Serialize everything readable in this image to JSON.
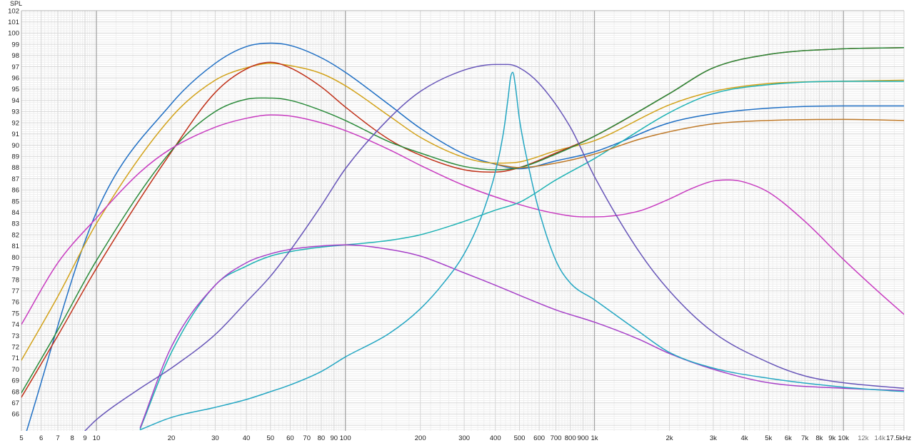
{
  "chart_data": {
    "type": "line",
    "title": "",
    "ylabel": "SPL",
    "xlabel": "",
    "x_scale": "log",
    "xlim": [
      5,
      17500
    ],
    "ylim": [
      64.5,
      102
    ],
    "grid": true,
    "legend": "none",
    "y_ticks": [
      "102",
      "101",
      "100",
      "99",
      "98",
      "97",
      "96",
      "95",
      "94",
      "93",
      "92",
      "91",
      "90",
      "89",
      "88",
      "87",
      "86",
      "85",
      "84",
      "83",
      "82",
      "81",
      "80",
      "79",
      "78",
      "77",
      "76",
      "75",
      "74",
      "73",
      "72",
      "71",
      "70",
      "69",
      "68",
      "67",
      "66"
    ],
    "x_ticks": [
      {
        "f": 5,
        "label": "5"
      },
      {
        "f": 6,
        "label": "6"
      },
      {
        "f": 7,
        "label": "7"
      },
      {
        "f": 8,
        "label": "8"
      },
      {
        "f": 9,
        "label": "9"
      },
      {
        "f": 10,
        "label": "10"
      },
      {
        "f": 20,
        "label": "20"
      },
      {
        "f": 30,
        "label": "30"
      },
      {
        "f": 40,
        "label": "40"
      },
      {
        "f": 50,
        "label": "50"
      },
      {
        "f": 60,
        "label": "60"
      },
      {
        "f": 70,
        "label": "70"
      },
      {
        "f": 80,
        "label": "80"
      },
      {
        "f": 90,
        "label": "90"
      },
      {
        "f": 100,
        "label": "100"
      },
      {
        "f": 200,
        "label": "200"
      },
      {
        "f": 300,
        "label": "300"
      },
      {
        "f": 400,
        "label": "400"
      },
      {
        "f": 500,
        "label": "500"
      },
      {
        "f": 600,
        "label": "600"
      },
      {
        "f": 700,
        "label": "700"
      },
      {
        "f": 800,
        "label": "800"
      },
      {
        "f": 900,
        "label": "900"
      },
      {
        "f": 1000,
        "label": "1k"
      },
      {
        "f": 2000,
        "label": "2k"
      },
      {
        "f": 3000,
        "label": "3k"
      },
      {
        "f": 4000,
        "label": "4k"
      },
      {
        "f": 5000,
        "label": "5k"
      },
      {
        "f": 6000,
        "label": "6k"
      },
      {
        "f": 7000,
        "label": "7k"
      },
      {
        "f": 8000,
        "label": "8k"
      },
      {
        "f": 9000,
        "label": "9k"
      },
      {
        "f": 10000,
        "label": "10k"
      },
      {
        "f": 12000,
        "label": "12k"
      },
      {
        "f": 14000,
        "label": "14k"
      },
      {
        "f": 17500,
        "label": "17.5kHz"
      }
    ],
    "series": [
      {
        "color": "#1f6fc4",
        "x": [
          5,
          10,
          20,
          30,
          40,
          50,
          60,
          80,
          100,
          150,
          200,
          300,
          400,
          500,
          700,
          1000,
          2000,
          3000,
          5000,
          10000,
          17500
        ],
        "y": [
          63,
          84,
          93.7,
          97.3,
          98.8,
          99.1,
          98.9,
          97.8,
          96.5,
          93.6,
          91.5,
          89.2,
          88.3,
          87.9,
          88.6,
          89.4,
          92.0,
          92.8,
          93.3,
          93.5,
          93.5
        ]
      },
      {
        "color": "#d2a21a",
        "x": [
          5,
          7,
          10,
          20,
          30,
          40,
          50,
          60,
          80,
          100,
          150,
          200,
          300,
          400,
          500,
          700,
          1000,
          2000,
          3000,
          5000,
          10000,
          17500
        ],
        "y": [
          70.8,
          76.5,
          83,
          92.5,
          95.8,
          96.9,
          97.3,
          97.1,
          96.4,
          95.3,
          92.6,
          90.7,
          88.9,
          88.4,
          88.5,
          89.5,
          90.4,
          93.6,
          94.8,
          95.5,
          95.7,
          95.8
        ]
      },
      {
        "color": "#c03018",
        "x": [
          5,
          7,
          10,
          20,
          30,
          40,
          50,
          60,
          80,
          100,
          150,
          200,
          300,
          400,
          500,
          700,
          1000,
          2000,
          3000,
          5000,
          10000,
          17500
        ],
        "y": [
          67.5,
          73,
          79,
          89.4,
          94.7,
          96.8,
          97.4,
          96.9,
          95.2,
          93.4,
          90.5,
          89.1,
          87.8,
          87.6,
          88.0,
          89.3,
          90.8,
          94.6,
          96.9,
          98.1,
          98.6,
          98.7
        ]
      },
      {
        "color": "#2a8a3a",
        "x": [
          5,
          7,
          10,
          20,
          30,
          40,
          50,
          60,
          80,
          100,
          150,
          200,
          300,
          400,
          500,
          700,
          1000,
          2000,
          3000,
          5000,
          10000,
          17500
        ],
        "y": [
          67.9,
          73.5,
          79.7,
          89.5,
          93.0,
          94.1,
          94.2,
          94.0,
          93.1,
          92.2,
          90.3,
          89.3,
          88.1,
          87.8,
          88.0,
          89.2,
          90.8,
          94.6,
          96.9,
          98.1,
          98.6,
          98.7
        ]
      },
      {
        "color": "#c83cc0",
        "x": [
          5,
          7,
          10,
          15,
          20,
          30,
          40,
          50,
          60,
          80,
          100,
          150,
          200,
          300,
          500,
          700,
          900,
          1000,
          1500,
          2000,
          2500,
          3000,
          3500,
          4000,
          5000,
          7000,
          10000,
          14000,
          17500
        ],
        "y": [
          74,
          79.5,
          83.5,
          87.6,
          89.7,
          91.6,
          92.4,
          92.7,
          92.6,
          92.0,
          91.3,
          89.6,
          88.2,
          86.4,
          84.7,
          83.9,
          83.6,
          83.6,
          84.1,
          85.2,
          86.2,
          86.8,
          86.9,
          86.7,
          85.8,
          83.2,
          79.8,
          76.8,
          74.9
        ]
      },
      {
        "color": "#1eb2b4",
        "x": [
          15,
          20,
          30,
          40,
          50,
          60,
          80,
          100,
          150,
          200,
          300,
          400,
          500,
          700,
          1000,
          2000,
          3000,
          5000,
          10000,
          17500
        ],
        "y": [
          64.7,
          71.5,
          77.5,
          79.2,
          80.1,
          80.5,
          80.9,
          81.1,
          81.5,
          82.0,
          83.2,
          84.2,
          84.9,
          86.9,
          88.8,
          92.9,
          94.6,
          95.4,
          95.7,
          95.7
        ]
      },
      {
        "color": "#bf7a2a",
        "x": [
          400,
          500,
          700,
          1000,
          1500,
          2000,
          3000,
          5000,
          10000,
          17500
        ],
        "y": [
          88.3,
          88.0,
          88.4,
          89.2,
          90.5,
          91.2,
          91.9,
          92.2,
          92.3,
          92.2
        ]
      },
      {
        "color": "#a640c8",
        "x": [
          15,
          20,
          30,
          40,
          50,
          60,
          80,
          100,
          150,
          200,
          300,
          400,
          500,
          700,
          1000,
          1500,
          2000,
          3000,
          5000,
          10000,
          17500
        ],
        "y": [
          64.8,
          72,
          77.5,
          79.5,
          80.3,
          80.7,
          81.0,
          81.1,
          80.7,
          80.1,
          78.6,
          77.5,
          76.6,
          75.3,
          74.2,
          72.7,
          71.4,
          70.0,
          68.8,
          68.3,
          68.1
        ]
      },
      {
        "color": "#6654b8",
        "x": [
          9,
          10,
          15,
          20,
          30,
          40,
          50,
          60,
          80,
          100,
          150,
          200,
          300,
          400,
          450,
          500,
          600,
          800,
          1000,
          1500,
          2000,
          3000,
          5000,
          7000,
          10000,
          17500
        ],
        "y": [
          64.5,
          65.5,
          68.3,
          70.1,
          73.1,
          76.0,
          78.3,
          80.6,
          84.6,
          87.9,
          92.4,
          94.8,
          96.7,
          97.2,
          97.2,
          96.9,
          95.5,
          91.6,
          87.2,
          80.6,
          77.0,
          73.3,
          70.6,
          69.4,
          68.8,
          68.3
        ]
      },
      {
        "color": "#23a6c2",
        "x": [
          15,
          20,
          30,
          40,
          50,
          60,
          80,
          100,
          150,
          200,
          250,
          300,
          350,
          400,
          430,
          450,
          460,
          470,
          480,
          500,
          550,
          600,
          700,
          800,
          1000,
          1500,
          2000,
          3000,
          5000,
          10000,
          17500
        ],
        "y": [
          64.6,
          65.7,
          66.6,
          67.3,
          68.0,
          68.6,
          69.8,
          71.1,
          73.2,
          75.4,
          77.8,
          80.3,
          83.5,
          87.6,
          91.0,
          94.2,
          96.0,
          96.5,
          95.5,
          92.3,
          87.6,
          84.1,
          79.7,
          77.7,
          76.2,
          73.4,
          71.5,
          70.1,
          69.2,
          68.4,
          68.0
        ]
      }
    ]
  }
}
